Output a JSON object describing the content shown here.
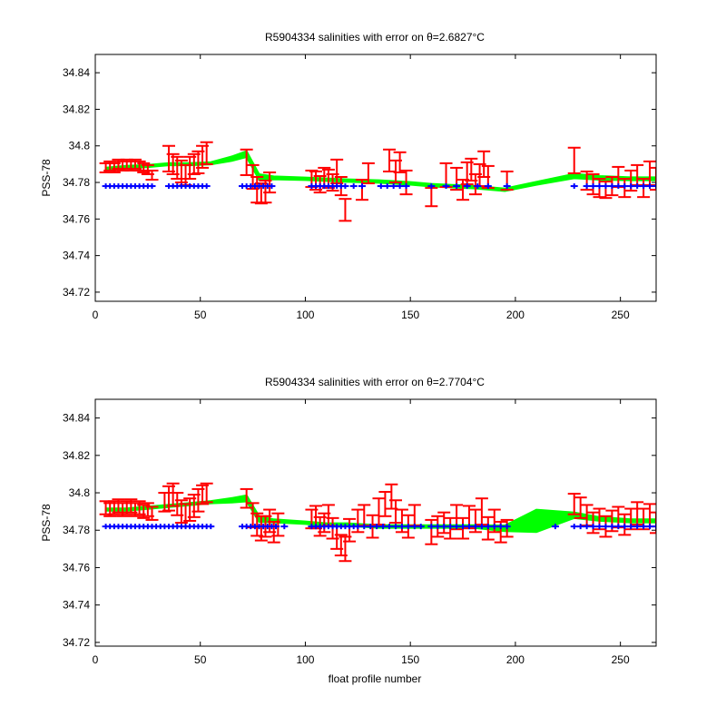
{
  "chart_data": [
    {
      "type": "line",
      "title": "R5904334 salinities with error on θ=2.6827°C",
      "xlabel": "",
      "ylabel": "PSS-78",
      "xlim": [
        0,
        267
      ],
      "ylim": [
        34.715,
        34.85
      ],
      "xticks": [
        0,
        50,
        100,
        150,
        200,
        250
      ],
      "yticks": [
        34.72,
        34.74,
        34.76,
        34.78,
        34.8,
        34.82,
        34.84
      ],
      "grid": false,
      "colors": {
        "band": "#00ff00",
        "errorbar": "#ff0000",
        "marker": "#0000ff"
      },
      "series": [
        {
          "style": "band",
          "x": [
            5,
            15,
            25,
            35,
            45,
            55,
            65,
            72,
            78,
            85,
            100,
            110,
            120,
            135,
            150,
            160,
            170,
            180,
            195,
            210,
            228,
            240,
            255,
            267
          ],
          "values": [
            34.7875,
            34.7885,
            34.789,
            34.79,
            34.79,
            34.7905,
            34.793,
            34.7955,
            34.783,
            34.7825,
            34.782,
            34.7815,
            34.781,
            34.7805,
            34.7795,
            34.7785,
            34.778,
            34.7775,
            34.776,
            34.7795,
            34.7835,
            34.7825,
            34.782,
            34.782
          ],
          "width": [
            0.0006,
            0.0006,
            0.0006,
            0.0006,
            0.0006,
            0.0006,
            0.0012,
            0.0016,
            0.0015,
            0.0008,
            0.0007,
            0.0007,
            0.0007,
            0.0007,
            0.0007,
            0.0007,
            0.0007,
            0.0007,
            0.0007,
            0.0008,
            0.0012,
            0.001,
            0.0008,
            0.0008
          ]
        },
        {
          "style": "errorbar",
          "x": [
            5,
            7,
            9,
            11,
            13,
            15,
            17,
            19,
            21,
            23,
            25,
            27,
            35,
            37,
            39,
            41,
            43,
            45,
            47,
            49,
            51,
            53,
            72,
            75,
            77,
            79,
            81,
            83,
            103,
            105,
            107,
            109,
            111,
            113,
            115,
            117,
            119,
            127,
            130,
            140,
            143,
            145,
            148,
            160,
            167,
            172,
            175,
            177,
            179,
            181,
            183,
            185,
            187,
            196,
            228,
            234,
            237,
            240,
            243,
            246,
            249,
            252,
            255,
            258,
            261,
            264,
            267
          ],
          "values": [
            34.788,
            34.789,
            34.788,
            34.79,
            34.789,
            34.79,
            34.789,
            34.79,
            34.789,
            34.788,
            34.787,
            34.784,
            34.793,
            34.79,
            34.788,
            34.786,
            34.784,
            34.788,
            34.79,
            34.791,
            34.794,
            34.796,
            34.791,
            34.783,
            34.776,
            34.774,
            34.775,
            34.78,
            34.782,
            34.781,
            34.779,
            34.783,
            34.782,
            34.78,
            34.786,
            34.778,
            34.765,
            34.776,
            34.785,
            34.792,
            34.786,
            34.791,
            34.78,
            34.772,
            34.784,
            34.782,
            34.776,
            34.785,
            34.787,
            34.779,
            34.784,
            34.79,
            34.783,
            34.781,
            34.792,
            34.781,
            34.779,
            34.777,
            34.776,
            34.778,
            34.783,
            34.777,
            34.781,
            34.784,
            34.777,
            34.785,
            34.782
          ],
          "error": [
            0.0025,
            0.0025,
            0.0025,
            0.0025,
            0.0025,
            0.0025,
            0.0025,
            0.0025,
            0.0025,
            0.0025,
            0.0025,
            0.0025,
            0.007,
            0.0055,
            0.006,
            0.006,
            0.0055,
            0.006,
            0.0055,
            0.006,
            0.006,
            0.006,
            0.007,
            0.0065,
            0.007,
            0.0055,
            0.006,
            0.0055,
            0.0045,
            0.005,
            0.0045,
            0.005,
            0.005,
            0.0045,
            0.0065,
            0.005,
            0.006,
            0.0055,
            0.0055,
            0.006,
            0.006,
            0.0055,
            0.0065,
            0.005,
            0.0065,
            0.006,
            0.0055,
            0.006,
            0.006,
            0.0055,
            0.006,
            0.007,
            0.006,
            0.005,
            0.007,
            0.005,
            0.0055,
            0.005,
            0.0045,
            0.005,
            0.0055,
            0.005,
            0.0055,
            0.0055,
            0.005,
            0.0065,
            0.006
          ]
        },
        {
          "style": "marker",
          "x": [
            5,
            7,
            9,
            11,
            13,
            15,
            17,
            19,
            21,
            23,
            25,
            27,
            35,
            37,
            39,
            41,
            43,
            45,
            47,
            49,
            51,
            53,
            70,
            72,
            74,
            76,
            78,
            80,
            82,
            84,
            103,
            105,
            107,
            109,
            111,
            113,
            115,
            117,
            119,
            123,
            127,
            136,
            139,
            142,
            145,
            148,
            160,
            167,
            172,
            177,
            182,
            187,
            196,
            228,
            234,
            237,
            240,
            243,
            246,
            249,
            252,
            255,
            258,
            261,
            264,
            267
          ],
          "values": [
            34.778,
            34.778,
            34.778,
            34.778,
            34.778,
            34.778,
            34.778,
            34.778,
            34.778,
            34.778,
            34.778,
            34.778,
            34.778,
            34.778,
            34.778,
            34.778,
            34.778,
            34.778,
            34.778,
            34.778,
            34.778,
            34.778,
            34.778,
            34.778,
            34.778,
            34.778,
            34.778,
            34.778,
            34.778,
            34.778,
            34.778,
            34.778,
            34.778,
            34.778,
            34.778,
            34.778,
            34.778,
            34.778,
            34.778,
            34.778,
            34.778,
            34.778,
            34.778,
            34.778,
            34.778,
            34.778,
            34.778,
            34.778,
            34.778,
            34.778,
            34.778,
            34.778,
            34.778,
            34.778,
            34.778,
            34.778,
            34.778,
            34.778,
            34.778,
            34.778,
            34.778,
            34.778,
            34.778,
            34.778,
            34.778,
            34.778
          ]
        }
      ]
    },
    {
      "type": "line",
      "title": "R5904334 salinities with error on θ=2.7704°C",
      "xlabel": "float profile number",
      "ylabel": "PSS-78",
      "xlim": [
        0,
        267
      ],
      "ylim": [
        34.718,
        34.85
      ],
      "xticks": [
        0,
        50,
        100,
        150,
        200,
        250
      ],
      "yticks": [
        34.72,
        34.74,
        34.76,
        34.78,
        34.8,
        34.82,
        34.84
      ],
      "grid": false,
      "colors": {
        "band": "#00ff00",
        "errorbar": "#ff0000",
        "marker": "#0000ff"
      },
      "series": [
        {
          "style": "band",
          "x": [
            5,
            15,
            25,
            35,
            45,
            55,
            65,
            72,
            78,
            85,
            100,
            110,
            120,
            135,
            150,
            160,
            170,
            180,
            195,
            210,
            228,
            240,
            255,
            267
          ],
          "values": [
            34.791,
            34.791,
            34.792,
            34.793,
            34.794,
            34.795,
            34.796,
            34.797,
            34.786,
            34.785,
            34.784,
            34.783,
            34.783,
            34.782,
            34.782,
            34.782,
            34.782,
            34.782,
            34.781,
            34.785,
            34.788,
            34.786,
            34.785,
            34.785
          ],
          "width": [
            0.0006,
            0.0006,
            0.0006,
            0.0006,
            0.0006,
            0.0006,
            0.0012,
            0.0016,
            0.0015,
            0.0008,
            0.0007,
            0.0007,
            0.0007,
            0.0007,
            0.0007,
            0.0007,
            0.0007,
            0.0007,
            0.0015,
            0.006,
            0.0015,
            0.001,
            0.0008,
            0.0008
          ]
        },
        {
          "style": "errorbar",
          "x": [
            5,
            7,
            9,
            11,
            13,
            15,
            17,
            19,
            21,
            23,
            25,
            27,
            33,
            35,
            37,
            39,
            41,
            43,
            45,
            47,
            49,
            51,
            53,
            72,
            75,
            77,
            79,
            81,
            83,
            85,
            87,
            103,
            105,
            107,
            109,
            111,
            113,
            115,
            117,
            119,
            121,
            125,
            128,
            132,
            135,
            138,
            141,
            143,
            146,
            149,
            152,
            160,
            163,
            166,
            169,
            172,
            175,
            178,
            181,
            184,
            187,
            190,
            193,
            196,
            228,
            231,
            234,
            237,
            240,
            243,
            246,
            249,
            252,
            255,
            258,
            261,
            264,
            267
          ],
          "values": [
            34.792,
            34.791,
            34.792,
            34.793,
            34.791,
            34.792,
            34.793,
            34.791,
            34.792,
            34.79,
            34.791,
            34.789,
            34.795,
            34.797,
            34.799,
            34.794,
            34.79,
            34.788,
            34.791,
            34.793,
            34.796,
            34.799,
            34.8,
            34.797,
            34.788,
            34.783,
            34.781,
            34.782,
            34.785,
            34.779,
            34.783,
            34.786,
            34.787,
            34.782,
            34.784,
            34.788,
            34.781,
            34.776,
            34.772,
            34.77,
            34.78,
            34.785,
            34.788,
            34.782,
            34.79,
            34.794,
            34.798,
            34.79,
            34.785,
            34.782,
            34.788,
            34.779,
            34.782,
            34.784,
            34.781,
            34.787,
            34.781,
            34.787,
            34.785,
            34.79,
            34.781,
            34.785,
            34.779,
            34.781,
            34.794,
            34.792,
            34.788,
            34.784,
            34.786,
            34.782,
            34.785,
            34.787,
            34.783,
            34.786,
            34.789,
            34.786,
            34.788,
            34.784
          ],
          "error": [
            0.0035,
            0.0035,
            0.0035,
            0.0035,
            0.0035,
            0.0035,
            0.0035,
            0.0035,
            0.0035,
            0.0035,
            0.0035,
            0.0035,
            0.005,
            0.0065,
            0.006,
            0.006,
            0.006,
            0.006,
            0.006,
            0.006,
            0.006,
            0.005,
            0.005,
            0.005,
            0.0065,
            0.006,
            0.0065,
            0.0055,
            0.006,
            0.0055,
            0.006,
            0.005,
            0.006,
            0.005,
            0.005,
            0.0055,
            0.0055,
            0.006,
            0.0055,
            0.0065,
            0.006,
            0.006,
            0.0055,
            0.006,
            0.007,
            0.0065,
            0.0065,
            0.006,
            0.006,
            0.006,
            0.0055,
            0.0065,
            0.0055,
            0.0055,
            0.0055,
            0.0065,
            0.0055,
            0.006,
            0.006,
            0.007,
            0.006,
            0.006,
            0.0055,
            0.0045,
            0.0055,
            0.0055,
            0.0055,
            0.0055,
            0.0055,
            0.0055,
            0.0055,
            0.0055,
            0.0055,
            0.0055,
            0.006,
            0.0055,
            0.006,
            0.0055
          ]
        },
        {
          "style": "marker",
          "x": [
            5,
            7,
            9,
            11,
            13,
            15,
            17,
            19,
            21,
            23,
            25,
            27,
            29,
            31,
            33,
            35,
            37,
            39,
            41,
            43,
            45,
            47,
            49,
            51,
            53,
            55,
            70,
            72,
            74,
            76,
            78,
            80,
            82,
            84,
            86,
            90,
            103,
            105,
            107,
            109,
            111,
            113,
            115,
            117,
            119,
            121,
            123,
            125,
            128,
            131,
            134,
            137,
            140,
            143,
            146,
            149,
            152,
            155,
            160,
            163,
            166,
            169,
            172,
            175,
            178,
            181,
            184,
            187,
            190,
            193,
            196,
            219,
            228,
            231,
            234,
            237,
            240,
            243,
            246,
            249,
            252,
            255,
            258,
            261,
            264,
            267
          ],
          "values": [
            34.782,
            34.782,
            34.782,
            34.782,
            34.782,
            34.782,
            34.782,
            34.782,
            34.782,
            34.782,
            34.782,
            34.782,
            34.782,
            34.782,
            34.782,
            34.782,
            34.782,
            34.782,
            34.782,
            34.782,
            34.782,
            34.782,
            34.782,
            34.782,
            34.782,
            34.782,
            34.782,
            34.782,
            34.782,
            34.782,
            34.782,
            34.782,
            34.782,
            34.782,
            34.782,
            34.782,
            34.782,
            34.782,
            34.782,
            34.782,
            34.782,
            34.782,
            34.782,
            34.782,
            34.782,
            34.782,
            34.782,
            34.782,
            34.782,
            34.782,
            34.782,
            34.782,
            34.782,
            34.782,
            34.782,
            34.782,
            34.782,
            34.782,
            34.782,
            34.782,
            34.782,
            34.782,
            34.782,
            34.782,
            34.782,
            34.782,
            34.782,
            34.782,
            34.782,
            34.782,
            34.782,
            34.782,
            34.782,
            34.782,
            34.782,
            34.782,
            34.782,
            34.782,
            34.782,
            34.782,
            34.782,
            34.782,
            34.782,
            34.782,
            34.782,
            34.782
          ]
        }
      ]
    }
  ]
}
